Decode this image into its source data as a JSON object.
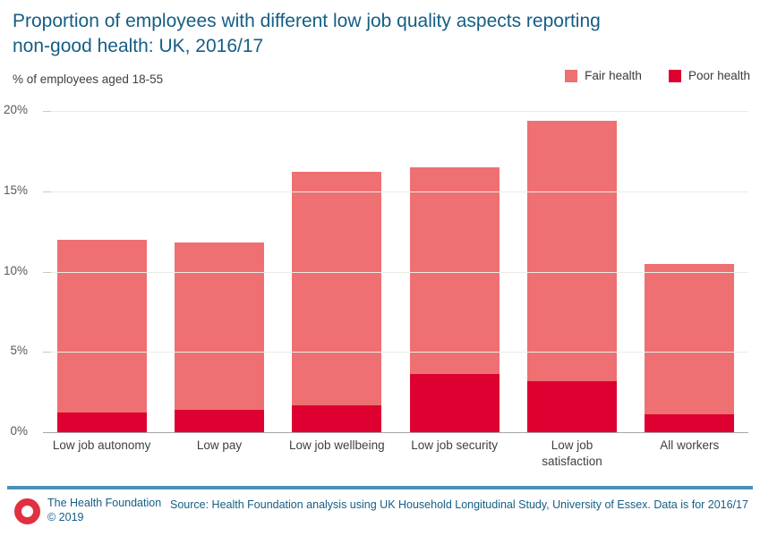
{
  "header": {
    "title": "Proportion of employees with different low job quality aspects reporting non-good health: UK, 2016/17",
    "subtitle": "% of employees aged 18-55"
  },
  "legend": [
    {
      "label": "Fair health",
      "color": "#ee7072"
    },
    {
      "label": "Poor health",
      "color": "#dd0031"
    }
  ],
  "chart_data": {
    "type": "bar",
    "stacked": true,
    "title": "Proportion of employees with different low job quality aspects reporting non-good health: UK, 2016/17",
    "ylabel": "% of employees aged 18-55",
    "categories": [
      "Low job autonomy",
      "Low pay",
      "Low job wellbeing",
      "Low job security",
      "Low job\nsatisfaction",
      "All workers"
    ],
    "series": [
      {
        "name": "Poor health",
        "color": "#dd0031",
        "values": [
          1.2,
          1.4,
          1.7,
          3.6,
          3.2,
          1.1
        ]
      },
      {
        "name": "Fair health",
        "color": "#ee7072",
        "values": [
          10.8,
          10.4,
          14.5,
          12.9,
          16.2,
          9.4
        ]
      }
    ],
    "totals": [
      12.0,
      11.8,
      16.2,
      16.5,
      19.4,
      10.5
    ],
    "ylim": [
      0,
      20
    ],
    "yticks": [
      {
        "value": 0,
        "label": "0%"
      },
      {
        "value": 5,
        "label": "5%"
      },
      {
        "value": 10,
        "label": "10%"
      },
      {
        "value": 15,
        "label": "15%"
      },
      {
        "value": 20,
        "label": "20%"
      }
    ],
    "grid": true,
    "legend_position": "top-right"
  },
  "colors": {
    "title_text": "#155e84",
    "fair_health": "#ee7072",
    "poor_health": "#dd0031",
    "gridline": "#ecece5",
    "axis_line": "#a6a6a6",
    "footer_rule": "#4b92b4",
    "logo_red": "#e1303f"
  },
  "footer": {
    "org": "The Health Foundation",
    "copyright": "© 2019",
    "source": "Source: Health Foundation analysis using UK Household Longitudinal Study, University of Essex. Data is for 2016/17"
  }
}
